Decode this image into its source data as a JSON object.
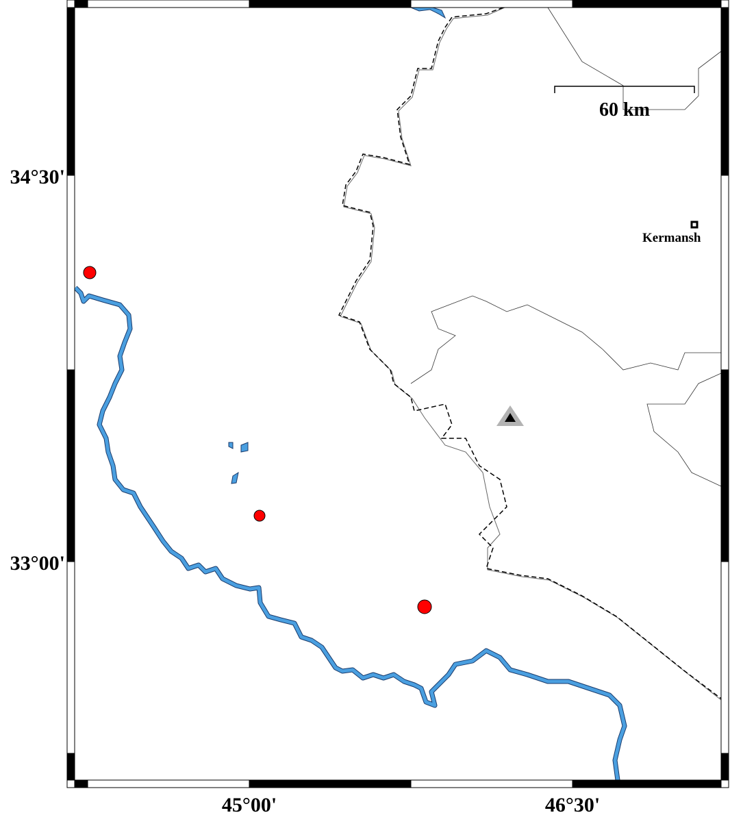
{
  "map": {
    "axes": {
      "x_ticks": [
        "45°00'",
        "46°30'"
      ],
      "y_ticks": [
        "34°30'",
        "33°00'"
      ]
    },
    "scale_bar": {
      "label": "60 km"
    },
    "city": {
      "name": "Kermansh",
      "symbol": "square-icon"
    },
    "station": {
      "symbol": "triangle-icon",
      "outer_color": "#b3b3b3",
      "inner_color": "#000000"
    },
    "events": {
      "symbol": "circle-icon",
      "color": "#ff0000",
      "count": 3
    },
    "colors": {
      "river": "#4a9fe0",
      "border": "#000000",
      "province": "#555555"
    }
  }
}
